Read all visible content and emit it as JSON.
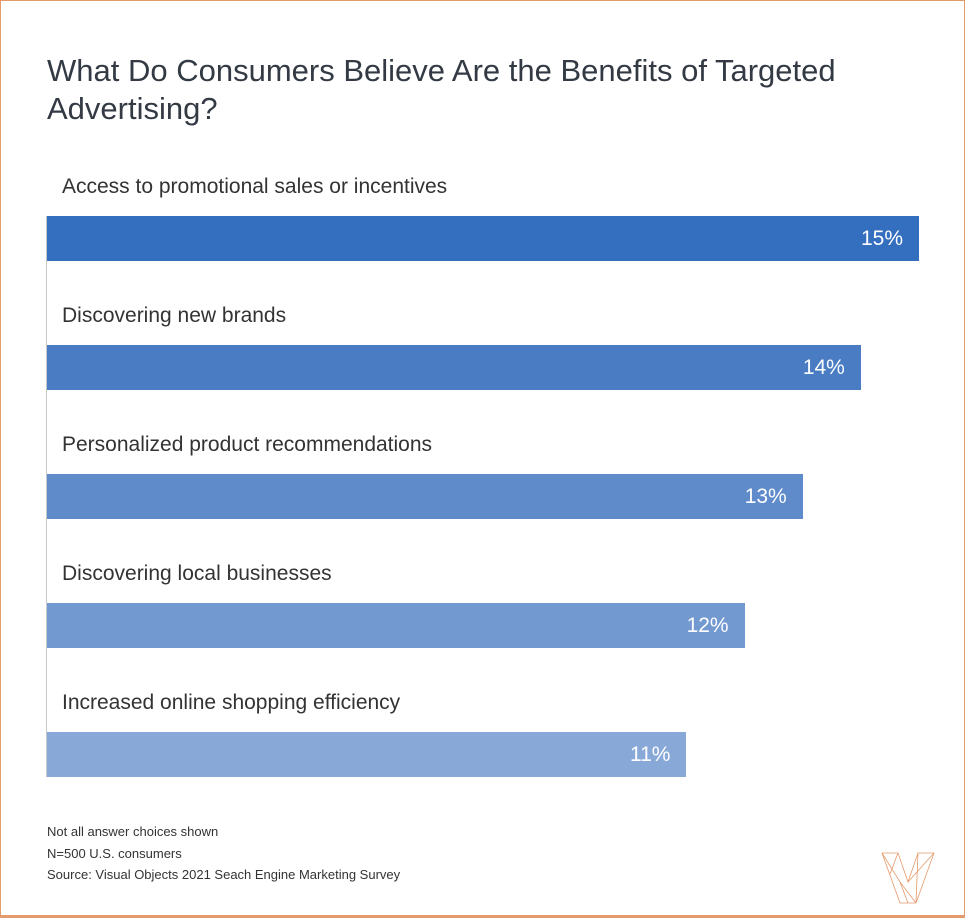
{
  "chart_data": {
    "type": "bar",
    "orientation": "horizontal",
    "title": "What Do Consumers Believe Are the Benefits of Targeted Advertising?",
    "categories": [
      "Access to promotional sales or incentives",
      "Discovering new brands",
      "Personalized product recommendations",
      "Discovering local businesses",
      "Increased online shopping efficiency"
    ],
    "values": [
      15,
      14,
      13,
      12,
      11
    ],
    "value_labels": [
      "15%",
      "14%",
      "13%",
      "12%",
      "11%"
    ],
    "colors": [
      "#346ebf",
      "#4a7cc4",
      "#5f8bcb",
      "#7399d1",
      "#88a8d8"
    ],
    "xlim": [
      0,
      15
    ],
    "grid": false
  },
  "footnotes": [
    "Not all answer choices shown",
    "N=500 U.S. consumers",
    "Source: Visual Objects 2021 Seach Engine Marketing Survey"
  ],
  "logo": {
    "name": "Visual Objects",
    "color": "#e59a6c"
  }
}
